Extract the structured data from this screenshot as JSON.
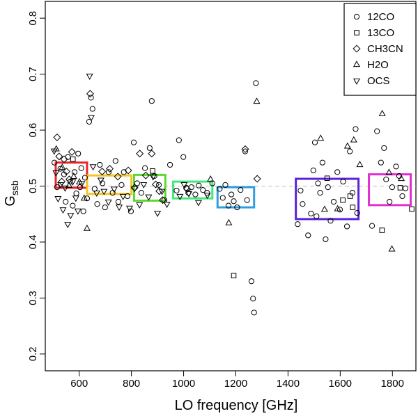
{
  "chart_data": {
    "type": "scatter",
    "title": "",
    "xlabel": "LO frequency [GHz]",
    "ylabel": "G",
    "ylabel_subscript": "ssb",
    "xlim": [
      470,
      1890
    ],
    "ylim": [
      0.17,
      0.83
    ],
    "xticks": [
      600,
      800,
      1000,
      1200,
      1400,
      1600,
      1800
    ],
    "yticks": [
      0.2,
      0.3,
      0.4,
      0.5,
      0.6,
      0.7,
      0.8
    ],
    "reference_line": 0.5,
    "legend": [
      {
        "label": "12CO",
        "marker": "circle"
      },
      {
        "label": "13CO",
        "marker": "square"
      },
      {
        "label": "CH3CN",
        "marker": "diamond"
      },
      {
        "label": "H2O",
        "marker": "triangle-up"
      },
      {
        "label": "OCS",
        "marker": "triangle-down"
      }
    ],
    "boxes": [
      {
        "x_range": [
          510,
          630
        ],
        "y_range": [
          0.497,
          0.542
        ],
        "color": "#e8252a"
      },
      {
        "x_range": [
          630,
          800
        ],
        "y_range": [
          0.486,
          0.519
        ],
        "color": "#f7c421"
      },
      {
        "x_range": [
          810,
          930
        ],
        "y_range": [
          0.474,
          0.52
        ],
        "color": "#5ed82f"
      },
      {
        "x_range": [
          960,
          1110
        ],
        "y_range": [
          0.478,
          0.508
        ],
        "color": "#3ee879"
      },
      {
        "x_range": [
          1130,
          1270
        ],
        "y_range": [
          0.462,
          0.498
        ],
        "color": "#2f9ddf"
      },
      {
        "x_range": [
          1430,
          1670
        ],
        "y_range": [
          0.441,
          0.513
        ],
        "color": "#5a23d8"
      },
      {
        "x_range": [
          1710,
          1870
        ],
        "y_range": [
          0.466,
          0.521
        ],
        "color": "#e22fd0"
      }
    ],
    "series": [
      {
        "name": "12CO",
        "points": [
          [
            505,
            0.542
          ],
          [
            515,
            0.498
          ],
          [
            528,
            0.531
          ],
          [
            542,
            0.521
          ],
          [
            548,
            0.472
          ],
          [
            557,
            0.552
          ],
          [
            566,
            0.508
          ],
          [
            575,
            0.465
          ],
          [
            582,
            0.525
          ],
          [
            589,
            0.487
          ],
          [
            596,
            0.558
          ],
          [
            603,
            0.498
          ],
          [
            608,
            0.532
          ],
          [
            616,
            0.455
          ],
          [
            622,
            0.515
          ],
          [
            630,
            0.478
          ],
          [
            638,
            0.615
          ],
          [
            645,
            0.658
          ],
          [
            651,
            0.638
          ],
          [
            659,
            0.495
          ],
          [
            669,
            0.468
          ],
          [
            679,
            0.538
          ],
          [
            689,
            0.505
          ],
          [
            699,
            0.462
          ],
          [
            713,
            0.525
          ],
          [
            728,
            0.488
          ],
          [
            739,
            0.545
          ],
          [
            750,
            0.472
          ],
          [
            762,
            0.502
          ],
          [
            771,
            0.525
          ],
          [
            785,
            0.482
          ],
          [
            798,
            0.455
          ],
          [
            809,
            0.578
          ],
          [
            822,
            0.505
          ],
          [
            838,
            0.488
          ],
          [
            852,
            0.532
          ],
          [
            870,
            0.568
          ],
          [
            878,
            0.652
          ],
          [
            888,
            0.518
          ],
          [
            905,
            0.502
          ],
          [
            926,
            0.475
          ],
          [
            948,
            0.538
          ],
          [
            973,
            0.492
          ],
          [
            982,
            0.582
          ],
          [
            999,
            0.552
          ],
          [
            1010,
            0.497
          ],
          [
            1018,
            0.488
          ],
          [
            1030,
            0.498
          ],
          [
            1045,
            0.485
          ],
          [
            1058,
            0.501
          ],
          [
            1074,
            0.493
          ],
          [
            1090,
            0.488
          ],
          [
            1110,
            0.505
          ],
          [
            1138,
            0.495
          ],
          [
            1150,
            0.479
          ],
          [
            1160,
            0.502
          ],
          [
            1172,
            0.465
          ],
          [
            1183,
            0.485
          ],
          [
            1192,
            0.473
          ],
          [
            1205,
            0.462
          ],
          [
            1218,
            0.493
          ],
          [
            1236,
            0.562
          ],
          [
            1243,
            0.475
          ],
          [
            1260,
            0.33
          ],
          [
            1266,
            0.299
          ],
          [
            1270,
            0.274
          ],
          [
            1277,
            0.684
          ],
          [
            1437,
            0.432
          ],
          [
            1448,
            0.492
          ],
          [
            1456,
            0.468
          ],
          [
            1477,
            0.412
          ],
          [
            1488,
            0.451
          ],
          [
            1497,
            0.528
          ],
          [
            1503,
            0.578
          ],
          [
            1509,
            0.446
          ],
          [
            1515,
            0.505
          ],
          [
            1523,
            0.488
          ],
          [
            1532,
            0.542
          ],
          [
            1544,
            0.405
          ],
          [
            1553,
            0.498
          ],
          [
            1563,
            0.438
          ],
          [
            1575,
            0.472
          ],
          [
            1589,
            0.525
          ],
          [
            1599,
            0.458
          ],
          [
            1611,
            0.508
          ],
          [
            1626,
            0.428
          ],
          [
            1637,
            0.562
          ],
          [
            1647,
            0.488
          ],
          [
            1659,
            0.602
          ],
          [
            1665,
            0.452
          ],
          [
            1722,
            0.429
          ],
          [
            1741,
            0.598
          ],
          [
            1756,
            0.542
          ],
          [
            1768,
            0.568
          ],
          [
            1776,
            0.512
          ],
          [
            1789,
            0.472
          ],
          [
            1799,
            0.498
          ],
          [
            1814,
            0.535
          ],
          [
            1826,
            0.518
          ],
          [
            1838,
            0.482
          ],
          [
            1850,
            0.496
          ]
        ]
      },
      {
        "name": "13CO",
        "points": [
          [
            576,
            0.548
          ],
          [
            881,
            0.527
          ],
          [
            1192,
            0.34
          ],
          [
            1550,
            0.514
          ],
          [
            1610,
            0.475
          ],
          [
            1638,
            0.482
          ],
          [
            1648,
            0.462
          ],
          [
            1760,
            0.421
          ],
          [
            1830,
            0.497
          ],
          [
            1874,
            0.459
          ]
        ]
      },
      {
        "name": "CH3CN",
        "points": [
          [
            515,
            0.587
          ],
          [
            523,
            0.553
          ],
          [
            533,
            0.508
          ],
          [
            542,
            0.548
          ],
          [
            551,
            0.526
          ],
          [
            562,
            0.512
          ],
          [
            572,
            0.561
          ],
          [
            642,
            0.665
          ],
          [
            688,
            0.526
          ],
          [
            717,
            0.531
          ],
          [
            748,
            0.517
          ],
          [
            788,
            0.528
          ],
          [
            812,
            0.497
          ],
          [
            832,
            0.558
          ],
          [
            855,
            0.519
          ],
          [
            878,
            0.558
          ],
          [
            893,
            0.503
          ],
          [
            907,
            0.491
          ],
          [
            920,
            0.475
          ],
          [
            1013,
            0.495
          ],
          [
            1236,
            0.566
          ],
          [
            1282,
            0.513
          ]
        ]
      },
      {
        "name": "H2O",
        "points": [
          [
            512,
            0.566
          ],
          [
            535,
            0.533
          ],
          [
            561,
            0.501
          ],
          [
            579,
            0.517
          ],
          [
            601,
            0.507
          ],
          [
            619,
            0.478
          ],
          [
            630,
            0.424
          ],
          [
            1103,
            0.512
          ],
          [
            1173,
            0.434
          ],
          [
            1280,
            0.651
          ],
          [
            1525,
            0.585
          ],
          [
            1540,
            0.458
          ],
          [
            1590,
            0.459
          ],
          [
            1628,
            0.571
          ],
          [
            1652,
            0.582
          ],
          [
            1675,
            0.538
          ],
          [
            1761,
            0.629
          ],
          [
            1787,
            0.524
          ],
          [
            1798,
            0.387
          ],
          [
            1834,
            0.513
          ]
        ]
      },
      {
        "name": "OCS",
        "points": [
          [
            504,
            0.563
          ],
          [
            511,
            0.524
          ],
          [
            519,
            0.478
          ],
          [
            529,
            0.503
          ],
          [
            538,
            0.458
          ],
          [
            546,
            0.497
          ],
          [
            556,
            0.432
          ],
          [
            567,
            0.448
          ],
          [
            575,
            0.508
          ],
          [
            587,
            0.479
          ],
          [
            595,
            0.456
          ],
          [
            610,
            0.505
          ],
          [
            640,
            0.697
          ],
          [
            646,
            0.623
          ],
          [
            653,
            0.535
          ],
          [
            667,
            0.488
          ],
          [
            683,
            0.511
          ],
          [
            695,
            0.491
          ],
          [
            712,
            0.472
          ],
          [
            734,
            0.495
          ],
          [
            753,
            0.463
          ],
          [
            768,
            0.482
          ],
          [
            793,
            0.461
          ],
          [
            812,
            0.496
          ],
          [
            831,
            0.467
          ],
          [
            847,
            0.503
          ],
          [
            866,
            0.481
          ],
          [
            883,
            0.517
          ],
          [
            900,
            0.452
          ],
          [
            917,
            0.491
          ],
          [
            936,
            0.468
          ],
          [
            986,
            0.482
          ],
          [
            1002,
            0.503
          ],
          [
            1020,
            0.487
          ],
          [
            1057,
            0.471
          ],
          [
            1091,
            0.484
          ]
        ]
      }
    ]
  }
}
